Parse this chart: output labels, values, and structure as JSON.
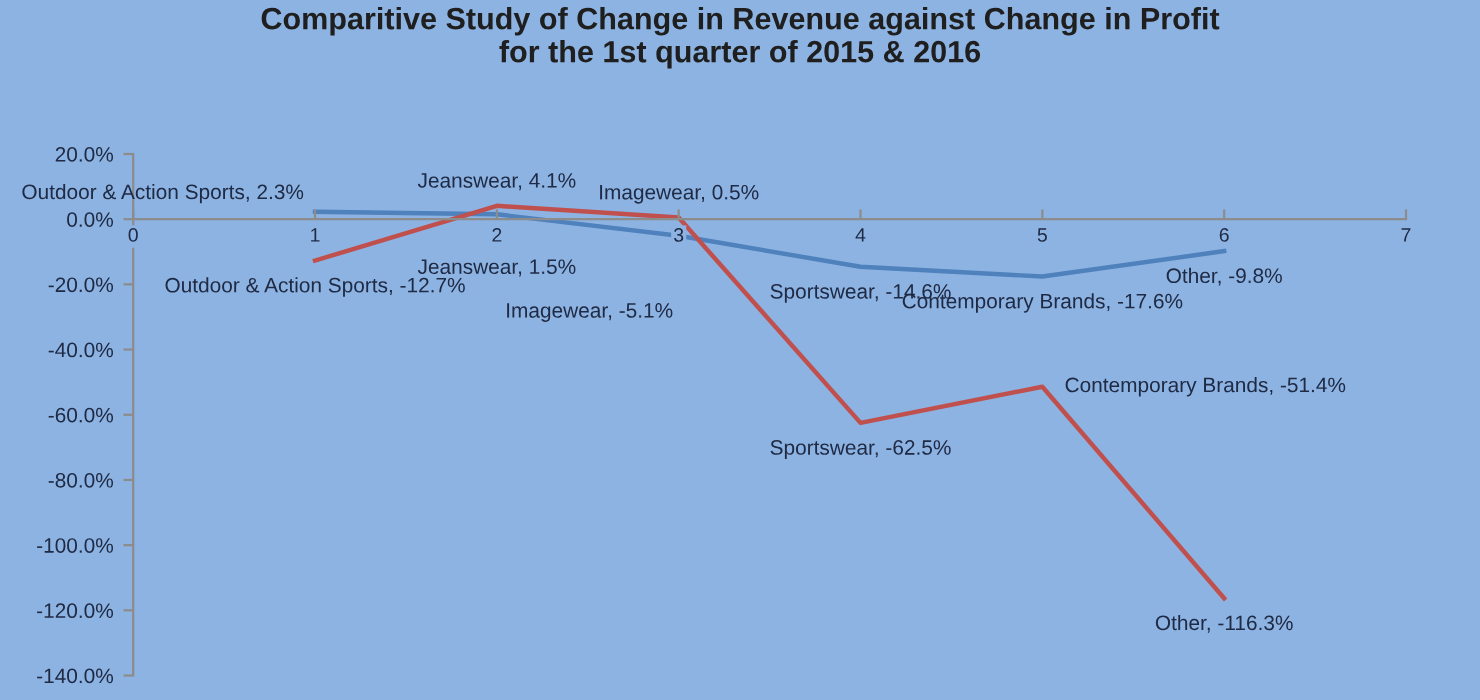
{
  "chart_data": {
    "type": "line",
    "title": "Comparitive Study of Change in Revenue against Change in Profit\nfor the 1st quarter of 2015 & 2016",
    "x": [
      1,
      2,
      3,
      4,
      5,
      6
    ],
    "series": [
      {
        "color": "#4f81bd",
        "values": [
          2.3,
          1.5,
          -5.1,
          -14.6,
          -17.6,
          -9.8
        ],
        "value_labels": [
          "Outdoor & Action Sports, 2.3%",
          "Jeanswear, 1.5%",
          "Imagewear, -5.1%",
          "Sportswear, -14.6%",
          "Contemporary Brands, -17.6%",
          "Other, -9.8%"
        ]
      },
      {
        "color": "#c0504d",
        "values": [
          -12.7,
          4.1,
          0.5,
          -62.5,
          -51.4,
          -116.3
        ],
        "value_labels": [
          "Outdoor & Action Sports, -12.7%",
          "Jeanswear, 4.1%",
          "Imagewear, 0.5%",
          "Sportswear, -62.5%",
          "Contemporary Brands, -51.4%",
          "Other, -116.3%"
        ]
      }
    ],
    "xlim": [
      0,
      7
    ],
    "xticks": [
      0,
      1,
      2,
      3,
      4,
      5,
      6,
      7
    ],
    "ylim": [
      -140,
      20
    ],
    "yticks": [
      {
        "value": 20,
        "label": "20.0%"
      },
      {
        "value": 0,
        "label": "0.0%"
      },
      {
        "value": -20,
        "label": "-20.0%"
      },
      {
        "value": -40,
        "label": "-40.0%"
      },
      {
        "value": -60,
        "label": "-60.0%"
      },
      {
        "value": -80,
        "label": "-80.0%"
      },
      {
        "value": -100,
        "label": "-100.0%"
      },
      {
        "value": -120,
        "label": "-120.0%"
      },
      {
        "value": -140,
        "label": "-140.0%"
      }
    ],
    "grid": false,
    "legend": false,
    "marker": "none",
    "line_style": "solid"
  }
}
